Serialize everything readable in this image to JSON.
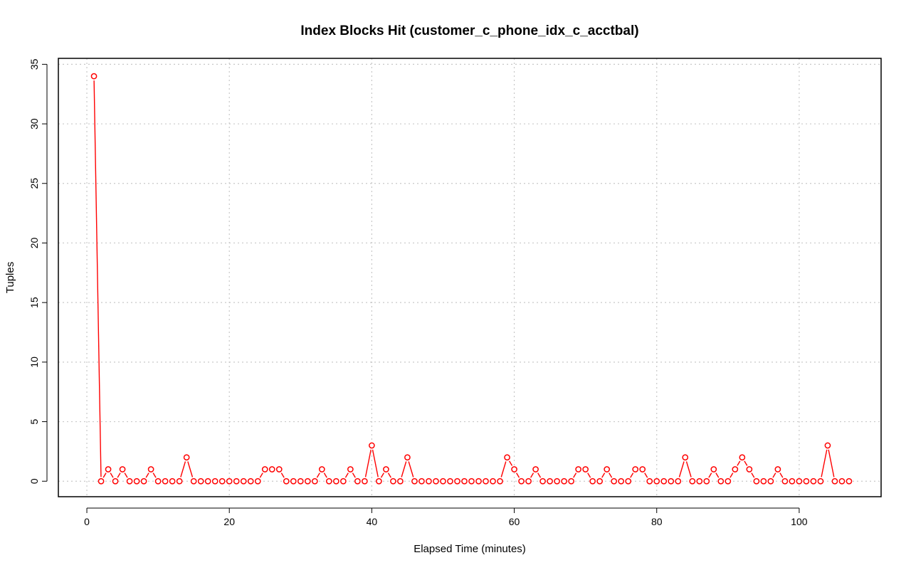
{
  "chart_data": {
    "type": "line",
    "title": "Index Blocks Hit (customer_c_phone_idx_c_acctbal)",
    "xlabel": "Elapsed Time (minutes)",
    "ylabel": "Tuples",
    "xlim": [
      -4,
      111.5
    ],
    "ylim": [
      -1.3,
      35.5
    ],
    "x_ticks": [
      0,
      20,
      40,
      60,
      80,
      100
    ],
    "y_ticks": [
      0,
      5,
      10,
      15,
      20,
      25,
      30,
      35
    ],
    "grid": true,
    "legend": "none",
    "color": "#ff0000",
    "series": [
      {
        "name": "Index Blocks Hit",
        "x": [
          1,
          2,
          3,
          4,
          5,
          6,
          7,
          8,
          9,
          10,
          11,
          12,
          13,
          14,
          15,
          16,
          17,
          18,
          19,
          20,
          21,
          22,
          23,
          24,
          25,
          26,
          27,
          28,
          29,
          30,
          31,
          32,
          33,
          34,
          35,
          36,
          37,
          38,
          39,
          40,
          41,
          42,
          43,
          44,
          45,
          46,
          47,
          48,
          49,
          50,
          51,
          52,
          53,
          54,
          55,
          56,
          57,
          58,
          59,
          60,
          61,
          62,
          63,
          64,
          65,
          66,
          67,
          68,
          69,
          70,
          71,
          72,
          73,
          74,
          75,
          76,
          77,
          78,
          79,
          80,
          81,
          82,
          83,
          84,
          85,
          86,
          87,
          88,
          89,
          90,
          91,
          92,
          93,
          94,
          95,
          96,
          97,
          98,
          99,
          100,
          101,
          102,
          103,
          104,
          105,
          106,
          107
        ],
        "values": [
          34,
          0,
          1,
          0,
          1,
          0,
          0,
          0,
          1,
          0,
          0,
          0,
          0,
          2,
          0,
          0,
          0,
          0,
          0,
          0,
          0,
          0,
          0,
          0,
          1,
          1,
          1,
          0,
          0,
          0,
          0,
          0,
          1,
          0,
          0,
          0,
          1,
          0,
          0,
          3,
          0,
          1,
          0,
          0,
          2,
          0,
          0,
          0,
          0,
          0,
          0,
          0,
          0,
          0,
          0,
          0,
          0,
          0,
          2,
          1,
          0,
          0,
          1,
          0,
          0,
          0,
          0,
          0,
          1,
          1,
          0,
          0,
          1,
          0,
          0,
          0,
          1,
          1,
          0,
          0,
          0,
          0,
          0,
          2,
          0,
          0,
          0,
          1,
          0,
          0,
          1,
          2,
          1,
          0,
          0,
          0,
          1,
          0,
          0,
          0,
          0,
          0,
          0,
          3,
          0,
          0,
          0
        ]
      }
    ]
  }
}
